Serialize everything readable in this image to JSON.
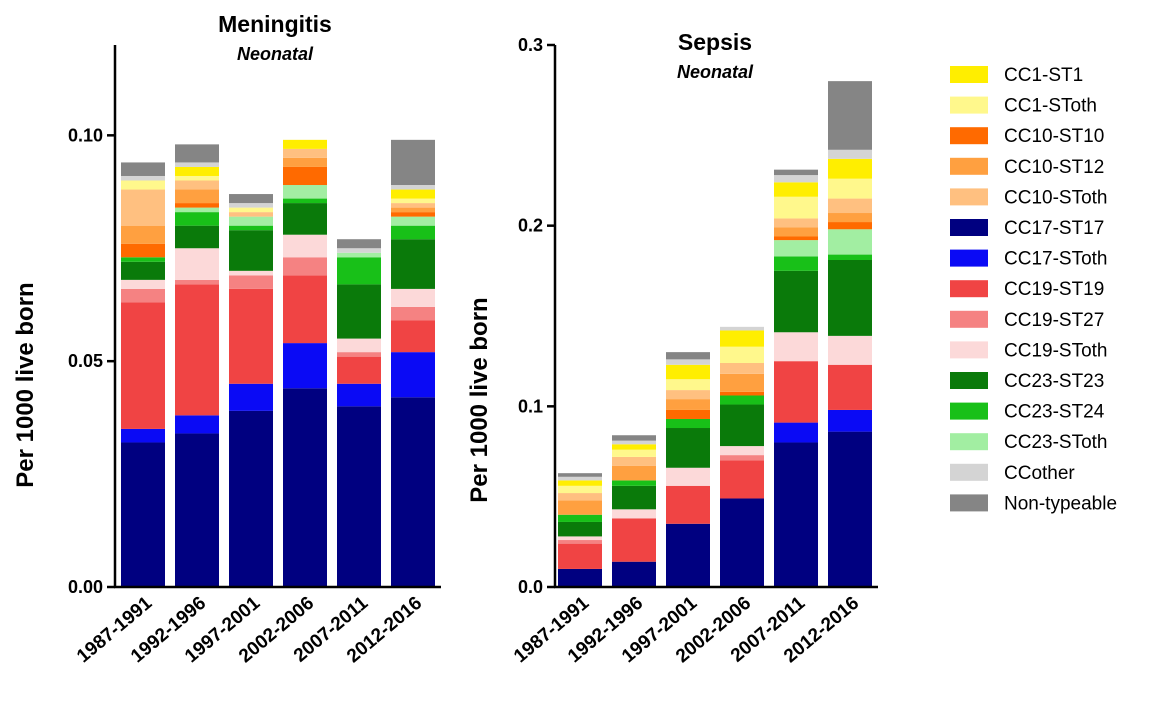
{
  "chart_data": [
    {
      "type": "bar",
      "stacked": true,
      "title": "Meningitis",
      "subtitle": "Neonatal",
      "ylabel": "Per 1000 live born",
      "ylim": [
        0,
        0.12
      ],
      "yticks": [
        0.0,
        0.05,
        0.1
      ],
      "ytick_labels": [
        "0.00",
        "0.05",
        "0.10"
      ],
      "categories": [
        "1987-1991",
        "1992-1996",
        "1997-2001",
        "2002-2006",
        "2007-2011",
        "2012-2016"
      ],
      "series": [
        {
          "name": "CC17-ST17",
          "values": [
            0.032,
            0.034,
            0.039,
            0.044,
            0.04,
            0.042
          ]
        },
        {
          "name": "CC17-SToth",
          "values": [
            0.003,
            0.004,
            0.006,
            0.01,
            0.005,
            0.01
          ]
        },
        {
          "name": "CC19-ST19",
          "values": [
            0.028,
            0.029,
            0.021,
            0.015,
            0.006,
            0.007
          ]
        },
        {
          "name": "CC19-ST27",
          "values": [
            0.003,
            0.001,
            0.003,
            0.004,
            0.001,
            0.003
          ]
        },
        {
          "name": "CC19-SToth",
          "values": [
            0.002,
            0.007,
            0.001,
            0.005,
            0.003,
            0.004
          ]
        },
        {
          "name": "CC23-ST23",
          "values": [
            0.004,
            0.005,
            0.009,
            0.007,
            0.012,
            0.011
          ]
        },
        {
          "name": "CC23-ST24",
          "values": [
            0.001,
            0.003,
            0.001,
            0.001,
            0.006,
            0.003
          ]
        },
        {
          "name": "CC23-SToth",
          "values": [
            0.0,
            0.001,
            0.002,
            0.003,
            0.001,
            0.002
          ]
        },
        {
          "name": "CC10-ST10",
          "values": [
            0.003,
            0.001,
            0.0,
            0.004,
            0.0,
            0.001
          ]
        },
        {
          "name": "CC10-ST12",
          "values": [
            0.004,
            0.003,
            0.0,
            0.002,
            0.0,
            0.001
          ]
        },
        {
          "name": "CC10-SToth",
          "values": [
            0.008,
            0.002,
            0.001,
            0.002,
            0.0,
            0.001
          ]
        },
        {
          "name": "CC1-SToth",
          "values": [
            0.002,
            0.001,
            0.001,
            0.0,
            0.0,
            0.001
          ]
        },
        {
          "name": "CC1-ST1",
          "values": [
            0.0,
            0.002,
            0.0,
            0.002,
            0.0,
            0.002
          ]
        },
        {
          "name": "CCother",
          "values": [
            0.001,
            0.001,
            0.001,
            0.0,
            0.001,
            0.001
          ]
        },
        {
          "name": "Non-typeable",
          "values": [
            0.003,
            0.004,
            0.002,
            0.0,
            0.002,
            0.01
          ]
        }
      ]
    },
    {
      "type": "bar",
      "stacked": true,
      "title": "Sepsis",
      "subtitle": "Neonatal",
      "ylabel": "Per 1000 live born",
      "ylim": [
        0,
        0.3
      ],
      "yticks": [
        0.0,
        0.1,
        0.2,
        0.3
      ],
      "ytick_labels": [
        "0.0",
        "0.1",
        "0.2",
        "0.3"
      ],
      "categories": [
        "1987-1991",
        "1992-1996",
        "1997-2001",
        "2002-2006",
        "2007-2011",
        "2012-2016"
      ],
      "series": [
        {
          "name": "CC17-ST17",
          "values": [
            0.01,
            0.014,
            0.035,
            0.049,
            0.08,
            0.086
          ]
        },
        {
          "name": "CC17-SToth",
          "values": [
            0.0,
            0.0,
            0.0,
            0.0,
            0.011,
            0.012
          ]
        },
        {
          "name": "CC19-ST19",
          "values": [
            0.014,
            0.024,
            0.021,
            0.021,
            0.034,
            0.025
          ]
        },
        {
          "name": "CC19-ST27",
          "values": [
            0.002,
            0.0,
            0.0,
            0.003,
            0.0,
            0.0
          ]
        },
        {
          "name": "CC19-SToth",
          "values": [
            0.002,
            0.005,
            0.01,
            0.005,
            0.016,
            0.016
          ]
        },
        {
          "name": "CC23-ST23",
          "values": [
            0.008,
            0.013,
            0.022,
            0.023,
            0.034,
            0.042
          ]
        },
        {
          "name": "CC23-ST24",
          "values": [
            0.004,
            0.003,
            0.005,
            0.005,
            0.008,
            0.003
          ]
        },
        {
          "name": "CC23-SToth",
          "values": [
            0.0,
            0.0,
            0.0,
            0.0,
            0.009,
            0.014
          ]
        },
        {
          "name": "CC10-ST10",
          "values": [
            0.0,
            0.0,
            0.005,
            0.002,
            0.002,
            0.004
          ]
        },
        {
          "name": "CC10-ST12",
          "values": [
            0.008,
            0.008,
            0.006,
            0.01,
            0.005,
            0.005
          ]
        },
        {
          "name": "CC10-SToth",
          "values": [
            0.004,
            0.005,
            0.005,
            0.006,
            0.005,
            0.008
          ]
        },
        {
          "name": "CC1-SToth",
          "values": [
            0.004,
            0.004,
            0.006,
            0.009,
            0.012,
            0.011
          ]
        },
        {
          "name": "CC1-ST1",
          "values": [
            0.003,
            0.003,
            0.008,
            0.009,
            0.008,
            0.011
          ]
        },
        {
          "name": "CCother",
          "values": [
            0.002,
            0.002,
            0.003,
            0.002,
            0.004,
            0.005
          ]
        },
        {
          "name": "Non-typeable",
          "values": [
            0.002,
            0.003,
            0.004,
            0.0,
            0.003,
            0.038
          ]
        }
      ]
    }
  ],
  "legend": {
    "placement": "right",
    "items": [
      {
        "name": "CC1-ST1",
        "color": "#ffee00"
      },
      {
        "name": "CC1-SToth",
        "color": "#fff88c"
      },
      {
        "name": "CC10-ST10",
        "color": "#ff6a00"
      },
      {
        "name": "CC10-ST12",
        "color": "#ffa040"
      },
      {
        "name": "CC10-SToth",
        "color": "#ffc080"
      },
      {
        "name": "CC17-ST17",
        "color": "#000080"
      },
      {
        "name": "CC17-SToth",
        "color": "#0a0af5"
      },
      {
        "name": "CC19-ST19",
        "color": "#f04444"
      },
      {
        "name": "CC19-ST27",
        "color": "#f58282"
      },
      {
        "name": "CC19-SToth",
        "color": "#fcd9d9"
      },
      {
        "name": "CC23-ST23",
        "color": "#0a7a0a"
      },
      {
        "name": "CC23-ST24",
        "color": "#18c018"
      },
      {
        "name": "CC23-SToth",
        "color": "#a2eea2"
      },
      {
        "name": "CCother",
        "color": "#d4d4d4"
      },
      {
        "name": "Non-typeable",
        "color": "#858585"
      }
    ]
  }
}
